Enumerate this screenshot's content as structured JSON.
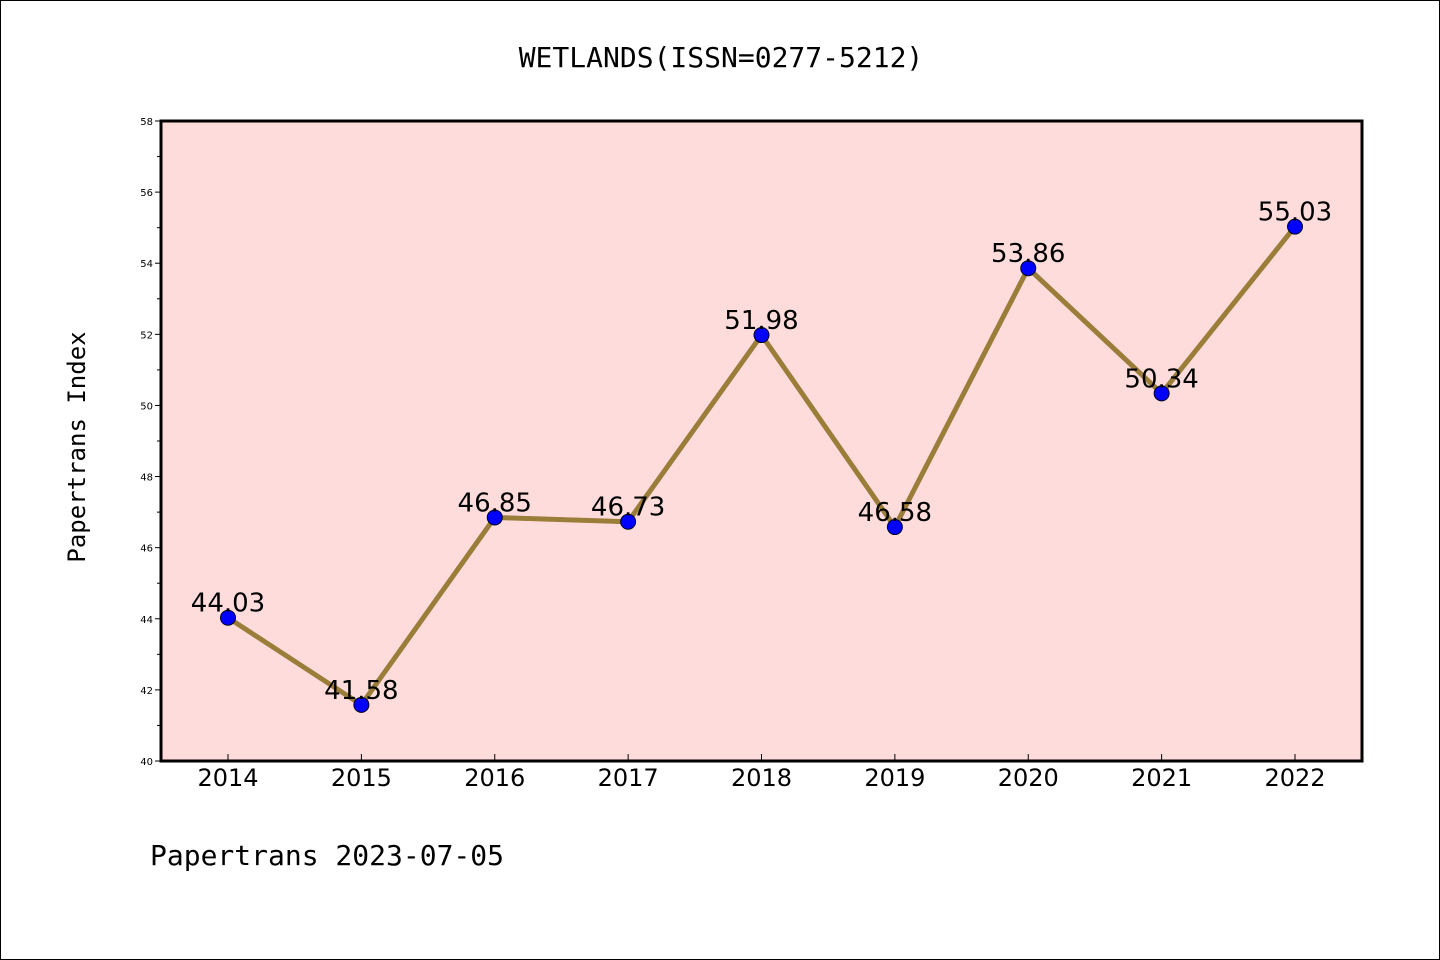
{
  "chart_data": {
    "type": "line",
    "title": "WETLANDS(ISSN=0277-5212)",
    "ylabel": "Papertrans Index",
    "xlabel": "",
    "footer": "Papertrans 2023-07-05",
    "categories": [
      "2014",
      "2015",
      "2016",
      "2017",
      "2018",
      "2019",
      "2020",
      "2021",
      "2022"
    ],
    "series": [
      {
        "values": [
          44.03,
          41.58,
          46.85,
          46.73,
          51.98,
          46.58,
          53.86,
          50.34,
          55.03
        ],
        "labels": [
          "44.03",
          "41.58",
          "46.85",
          "46.73",
          "51.98",
          "46.58",
          "53.86",
          "50.34",
          "55.03"
        ]
      }
    ],
    "ylim": [
      40,
      58
    ],
    "yticks": [
      "40",
      "42",
      "44",
      "46",
      "48",
      "50",
      "52",
      "54",
      "56",
      "58"
    ],
    "grid": false,
    "colors": {
      "plot_background": "#ffdcdc",
      "line": "#9b7d3a",
      "marker": "#0000ff"
    }
  }
}
